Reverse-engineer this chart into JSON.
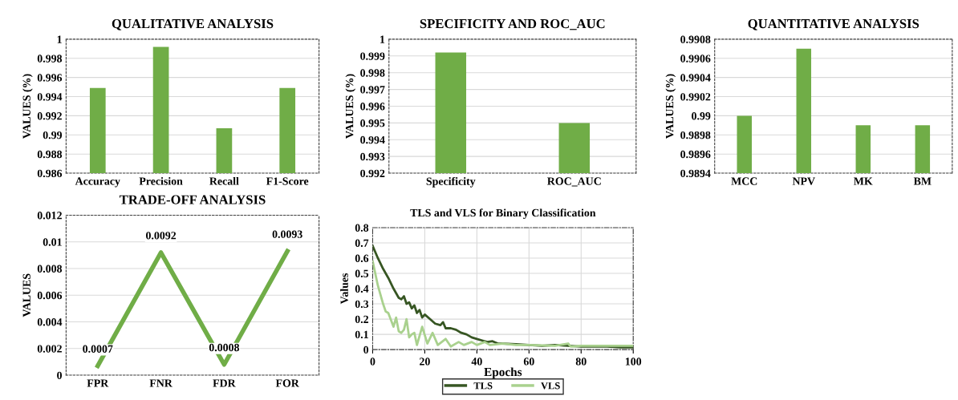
{
  "chart_data": [
    {
      "type": "bar",
      "title": "QUALITATIVE ANALYSIS",
      "ylabel": "VALUES (%)",
      "categories": [
        "Accuracy",
        "Precision",
        "Recall",
        "F1-Score"
      ],
      "values": [
        0.9949,
        0.9992,
        0.9907,
        0.9949
      ],
      "color": "#70ad47",
      "ylim": [
        0.986,
        1
      ],
      "yticks": [
        0.986,
        0.988,
        0.99,
        0.992,
        0.994,
        0.996,
        0.998,
        1
      ],
      "grid": "y"
    },
    {
      "type": "bar",
      "title": "SPECIFICITY AND ROC_AUC",
      "ylabel": "VALUES (%)",
      "categories": [
        "Specificity",
        "ROC_AUC"
      ],
      "values": [
        0.9992,
        0.995
      ],
      "color": "#70ad47",
      "ylim": [
        0.992,
        1
      ],
      "yticks": [
        0.992,
        0.993,
        0.994,
        0.995,
        0.996,
        0.997,
        0.998,
        0.999,
        1
      ],
      "grid": "y"
    },
    {
      "type": "bar",
      "title": "QUANTITATIVE ANALYSIS",
      "ylabel": "VALUES (%)",
      "categories": [
        "MCC",
        "NPV",
        "MK",
        "BM"
      ],
      "values": [
        0.99,
        0.9907,
        0.9899,
        0.9899
      ],
      "color": "#70ad47",
      "ylim": [
        0.9894,
        0.9908
      ],
      "yticks": [
        0.9894,
        0.9896,
        0.9898,
        0.99,
        0.9902,
        0.9904,
        0.9906,
        0.9908
      ],
      "grid": "y"
    },
    {
      "type": "line",
      "title": "TRADE-OFF ANALYSIS",
      "ylabel": "VALUES",
      "categories": [
        "FPR",
        "FNR",
        "FDR",
        "FOR"
      ],
      "values": [
        0.0007,
        0.0092,
        0.0008,
        0.0093
      ],
      "color": "#70ad47",
      "ylim": [
        0,
        0.012
      ],
      "yticks": [
        0,
        0.002,
        0.004,
        0.006,
        0.008,
        0.01,
        0.012
      ],
      "grid": "y",
      "data_labels": true
    },
    {
      "type": "line",
      "title": "TLS and VLS for Binary Classification",
      "xlabel": "Epochs",
      "ylabel": "Values",
      "xlim": [
        0,
        100
      ],
      "xticks": [
        0,
        20,
        40,
        60,
        80,
        100
      ],
      "ylim": [
        0,
        0.8
      ],
      "yticks": [
        0,
        0.1,
        0.2,
        0.3,
        0.4,
        0.5,
        0.6,
        0.7,
        0.8
      ],
      "grid": true,
      "legend": "bottom",
      "series": [
        {
          "name": "TLS",
          "color": "#375623",
          "x": [
            0,
            2,
            4,
            6,
            8,
            10,
            11,
            12,
            13,
            14,
            15,
            16,
            17,
            18,
            19,
            20,
            22,
            24,
            26,
            27,
            28,
            30,
            32,
            34,
            36,
            38,
            40,
            42,
            44,
            46,
            48,
            50,
            55,
            60,
            65,
            70,
            75,
            80,
            85,
            90,
            95,
            100
          ],
          "values": [
            0.68,
            0.6,
            0.53,
            0.47,
            0.4,
            0.34,
            0.33,
            0.35,
            0.3,
            0.31,
            0.27,
            0.29,
            0.24,
            0.26,
            0.21,
            0.23,
            0.2,
            0.17,
            0.16,
            0.18,
            0.14,
            0.14,
            0.13,
            0.11,
            0.1,
            0.08,
            0.07,
            0.06,
            0.05,
            0.055,
            0.04,
            0.04,
            0.035,
            0.03,
            0.025,
            0.03,
            0.025,
            0.02,
            0.02,
            0.02,
            0.015,
            0.015
          ]
        },
        {
          "name": "VLS",
          "color": "#a9d18e",
          "x": [
            0,
            2,
            4,
            5,
            6,
            8,
            9,
            10,
            11,
            12,
            13,
            14,
            15,
            16,
            17,
            19,
            21,
            23,
            25,
            28,
            30,
            33,
            35,
            38,
            40,
            43,
            45,
            50,
            55,
            60,
            70,
            75,
            76,
            80,
            90,
            100
          ],
          "values": [
            0.58,
            0.42,
            0.3,
            0.25,
            0.24,
            0.15,
            0.21,
            0.12,
            0.11,
            0.13,
            0.2,
            0.08,
            0.1,
            0.11,
            0.03,
            0.15,
            0.04,
            0.11,
            0.03,
            0.07,
            0.02,
            0.05,
            0.03,
            0.05,
            0.03,
            0.05,
            0.03,
            0.04,
            0.03,
            0.03,
            0.025,
            0.04,
            0.02,
            0.025,
            0.025,
            0.025
          ]
        }
      ]
    }
  ]
}
